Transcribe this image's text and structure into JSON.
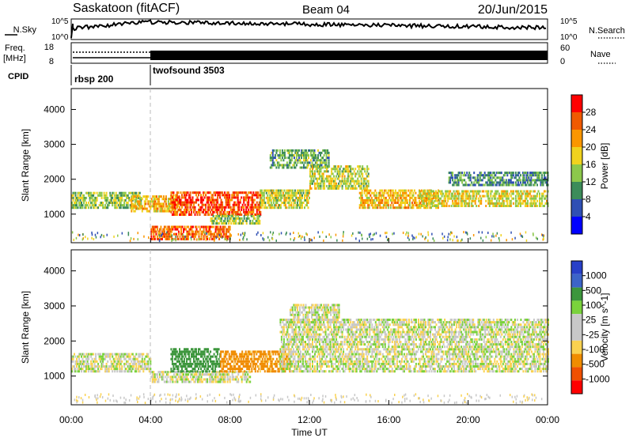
{
  "header": {
    "station": "Saskatoon (fitACF)",
    "beam": "Beam 04",
    "date": "20/Jun/2015"
  },
  "status_panel": {
    "nsky_label": "N.Sky",
    "nsearch_label": "N.Search",
    "freq_label_1": "Freq.",
    "freq_label_2": "[MHz]",
    "nave_label": "Nave",
    "cpid_label": "CPID",
    "noise_ticks_left": [
      "10^5",
      "10^0"
    ],
    "noise_ticks_right": [
      "10^5",
      "10^0"
    ],
    "freq_ticks": [
      "18",
      "8"
    ],
    "nave_ticks": [
      "60",
      "0"
    ],
    "cpid_segments": [
      {
        "label": "rbsp 200",
        "start_hour": 0
      },
      {
        "label": "twofsound 3503",
        "start_hour": 4
      }
    ]
  },
  "colors": {
    "power_scale": [
      "#0000ff",
      "#2f4fb4",
      "#3c8c5a",
      "#8cc84b",
      "#f0d21e",
      "#fa9600",
      "#f05a00",
      "#ff0000"
    ],
    "velocity_scale": [
      "#ff0000",
      "#f05000",
      "#f08c00",
      "#fad250",
      "#c8c8c8",
      "#c8c8c8",
      "#7ad23c",
      "#3c963c",
      "#3c64c8",
      "#2840c8"
    ],
    "ground_scatter": "#c8c8c8"
  },
  "chart_data": [
    {
      "type": "heatmap",
      "title": "",
      "xlabel": "",
      "ylabel": "Slant Range [km]",
      "xlim": [
        0,
        24
      ],
      "ylim": [
        180,
        4600
      ],
      "x_ticks": [
        "00:00",
        "04:00",
        "08:00",
        "12:00",
        "16:00",
        "20:00",
        "00:00"
      ],
      "y_ticks": [
        1000,
        2000,
        3000,
        4000
      ],
      "colorbar": {
        "label": "Power [dB]",
        "min": 0,
        "max": 32,
        "ticks": [
          4,
          8,
          12,
          16,
          20,
          24,
          28
        ]
      },
      "bands": [
        {
          "t0": 0.0,
          "t1": 3.5,
          "r0": 1150,
          "r1": 1600,
          "value": 14
        },
        {
          "t0": 3.0,
          "t1": 5.5,
          "r0": 1050,
          "r1": 1500,
          "value": 20
        },
        {
          "t0": 5.0,
          "t1": 9.5,
          "r0": 950,
          "r1": 1650,
          "value": 27
        },
        {
          "t0": 9.5,
          "t1": 12.0,
          "r0": 1150,
          "r1": 1700,
          "value": 16
        },
        {
          "t0": 10.0,
          "t1": 13.0,
          "r0": 2300,
          "r1": 2800,
          "value": 12
        },
        {
          "t0": 12.0,
          "t1": 15.0,
          "r0": 1700,
          "r1": 2400,
          "value": 16
        },
        {
          "t0": 14.5,
          "t1": 18.5,
          "r0": 1150,
          "r1": 1700,
          "value": 20
        },
        {
          "t0": 17.5,
          "t1": 24.0,
          "r0": 1200,
          "r1": 1650,
          "value": 17
        },
        {
          "t0": 19.0,
          "t1": 24.0,
          "r0": 1800,
          "r1": 2200,
          "value": 10
        },
        {
          "t0": 4.0,
          "t1": 8.0,
          "r0": 250,
          "r1": 650,
          "value": 25
        },
        {
          "t0": 7.0,
          "t1": 9.5,
          "r0": 700,
          "r1": 950,
          "value": 14
        }
      ]
    },
    {
      "type": "heatmap",
      "title": "",
      "xlabel": "Time UT",
      "ylabel": "Slant Range [km]",
      "xlim": [
        0,
        24
      ],
      "ylim": [
        180,
        4600
      ],
      "x_ticks": [
        "00:00",
        "04:00",
        "08:00",
        "12:00",
        "16:00",
        "20:00",
        "00:00"
      ],
      "y_ticks": [
        1000,
        2000,
        3000,
        4000
      ],
      "colorbar": {
        "label": "Velocity [m s^-1]",
        "ticks": [
          "1000",
          "500",
          "100",
          "25",
          "-25",
          "-100",
          "-500",
          "-1000"
        ]
      },
      "bands": [
        {
          "t0": 0.0,
          "t1": 4.0,
          "r0": 1100,
          "r1": 1600,
          "value": 0
        },
        {
          "t0": 4.0,
          "t1": 9.0,
          "r0": 800,
          "r1": 1100,
          "value": 0
        },
        {
          "t0": 5.0,
          "t1": 7.5,
          "r0": 1100,
          "r1": 1800,
          "value": 200
        },
        {
          "t0": 7.5,
          "t1": 11.0,
          "r0": 1100,
          "r1": 1700,
          "value": -150
        },
        {
          "t0": 10.5,
          "t1": 24.0,
          "r0": 1100,
          "r1": 2600,
          "value": 0
        },
        {
          "t0": 11.0,
          "t1": 13.5,
          "r0": 2500,
          "r1": 3000,
          "value": 0
        }
      ]
    }
  ]
}
